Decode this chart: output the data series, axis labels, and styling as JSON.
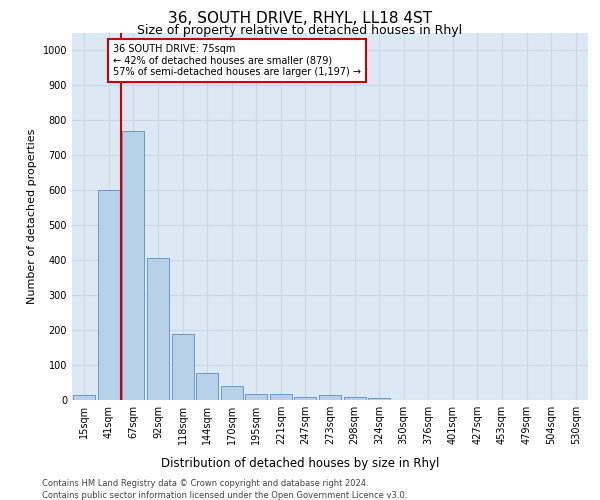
{
  "title": "36, SOUTH DRIVE, RHYL, LL18 4ST",
  "subtitle": "Size of property relative to detached houses in Rhyl",
  "xlabel_bottom": "Distribution of detached houses by size in Rhyl",
  "ylabel": "Number of detached properties",
  "bar_labels": [
    "15sqm",
    "41sqm",
    "67sqm",
    "92sqm",
    "118sqm",
    "144sqm",
    "170sqm",
    "195sqm",
    "221sqm",
    "247sqm",
    "273sqm",
    "298sqm",
    "324sqm",
    "350sqm",
    "376sqm",
    "401sqm",
    "427sqm",
    "453sqm",
    "479sqm",
    "504sqm",
    "530sqm"
  ],
  "bar_values": [
    15,
    600,
    770,
    405,
    190,
    78,
    40,
    18,
    17,
    10,
    15,
    10,
    7,
    0,
    0,
    0,
    0,
    0,
    0,
    0,
    0
  ],
  "bar_color": "#b8d0e8",
  "bar_edge_color": "#6699cc",
  "property_line_x": 1.5,
  "property_line_color": "#cc0000",
  "annotation_text": "36 SOUTH DRIVE: 75sqm\n← 42% of detached houses are smaller (879)\n57% of semi-detached houses are larger (1,197) →",
  "annotation_box_edgecolor": "#cc0000",
  "ylim": [
    0,
    1050
  ],
  "yticks": [
    0,
    100,
    200,
    300,
    400,
    500,
    600,
    700,
    800,
    900,
    1000
  ],
  "grid_color": "#c8d8e8",
  "background_color": "#dce8f4",
  "footer_line1": "Contains HM Land Registry data © Crown copyright and database right 2024.",
  "footer_line2": "Contains public sector information licensed under the Open Government Licence v3.0.",
  "title_fontsize": 11,
  "subtitle_fontsize": 9,
  "ylabel_fontsize": 8,
  "tick_fontsize": 7,
  "footer_fontsize": 6,
  "xlabel_fontsize": 8.5
}
